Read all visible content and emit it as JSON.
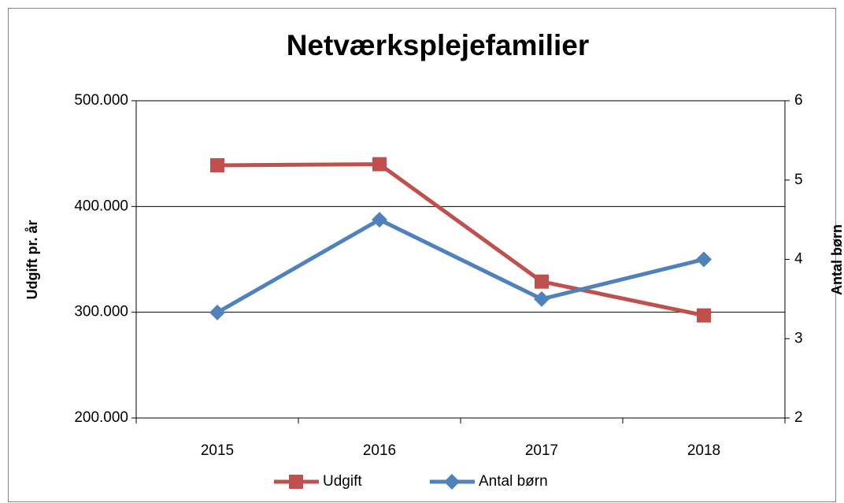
{
  "chart_data": {
    "type": "line",
    "title": "Netværksplejefamilier",
    "categories": [
      "2015",
      "2016",
      "2017",
      "2018"
    ],
    "series": [
      {
        "name": "Udgift",
        "color": "#c0504d",
        "marker": "square",
        "values": [
          439000,
          440000,
          329000,
          297000
        ]
      },
      {
        "name": "Antal børn",
        "color": "#4f81bd",
        "marker": "diamond",
        "axis": "y2",
        "values": [
          3.33,
          4.5,
          3.5,
          4
        ]
      }
    ],
    "ylabel": "Udgift pr. år",
    "y2label": "Antal børn",
    "ylim": [
      200000,
      500000
    ],
    "yticks": [
      {
        "value": 200000,
        "label": "200.000"
      },
      {
        "value": 300000,
        "label": "300.000"
      },
      {
        "value": 400000,
        "label": "400.000"
      },
      {
        "value": 500000,
        "label": "500.000"
      }
    ],
    "y2lim": [
      2,
      6
    ],
    "y2ticks": [
      2,
      3,
      4,
      5,
      6
    ],
    "grid": true,
    "legend": "bottom"
  }
}
